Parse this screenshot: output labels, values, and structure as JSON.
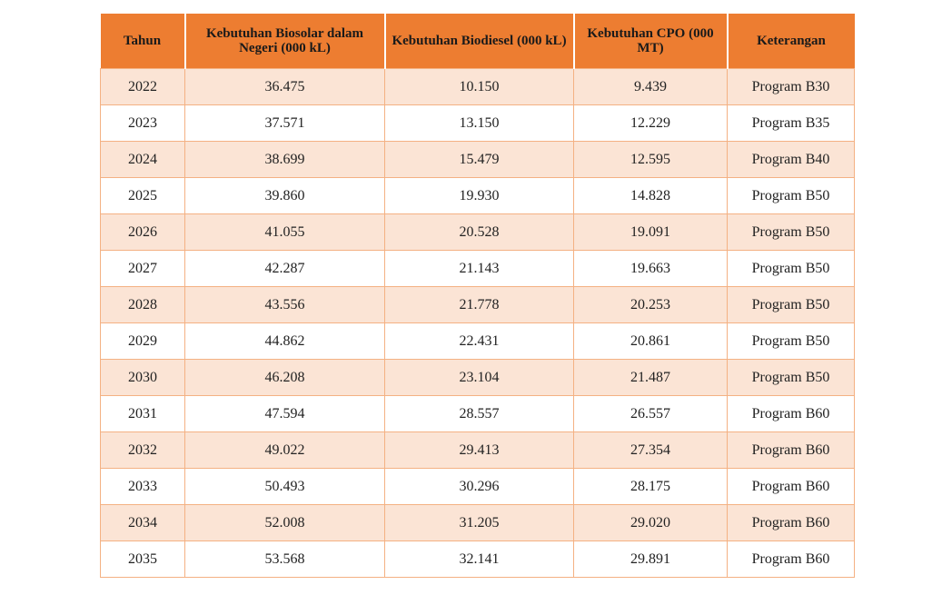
{
  "table": {
    "headers": [
      "Tahun",
      "Kebutuhan Biosolar dalam Negeri (000 kL)",
      "Kebutuhan Biodiesel (000 kL)",
      "Kebutuhan CPO (000 MT)",
      "Keterangan"
    ],
    "rows": [
      [
        "2022",
        "36.475",
        "10.150",
        "9.439",
        "Program B30"
      ],
      [
        "2023",
        "37.571",
        "13.150",
        "12.229",
        "Program B35"
      ],
      [
        "2024",
        "38.699",
        "15.479",
        "12.595",
        "Program B40"
      ],
      [
        "2025",
        "39.860",
        "19.930",
        "14.828",
        "Program B50"
      ],
      [
        "2026",
        "41.055",
        "20.528",
        "19.091",
        "Program B50"
      ],
      [
        "2027",
        "42.287",
        "21.143",
        "19.663",
        "Program B50"
      ],
      [
        "2028",
        "43.556",
        "21.778",
        "20.253",
        "Program B50"
      ],
      [
        "2029",
        "44.862",
        "22.431",
        "20.861",
        "Program B50"
      ],
      [
        "2030",
        "46.208",
        "23.104",
        "21.487",
        "Program B50"
      ],
      [
        "2031",
        "47.594",
        "28.557",
        "26.557",
        "Program B60"
      ],
      [
        "2032",
        "49.022",
        "29.413",
        "27.354",
        "Program B60"
      ],
      [
        "2033",
        "50.493",
        "30.296",
        "28.175",
        "Program B60"
      ],
      [
        "2034",
        "52.008",
        "31.205",
        "29.020",
        "Program B60"
      ],
      [
        "2035",
        "53.568",
        "32.141",
        "29.891",
        "Program B60"
      ]
    ]
  },
  "colors": {
    "header_bg": "#ED7D31",
    "row_alt_bg": "#FBE4D5",
    "border": "#F4B183"
  }
}
